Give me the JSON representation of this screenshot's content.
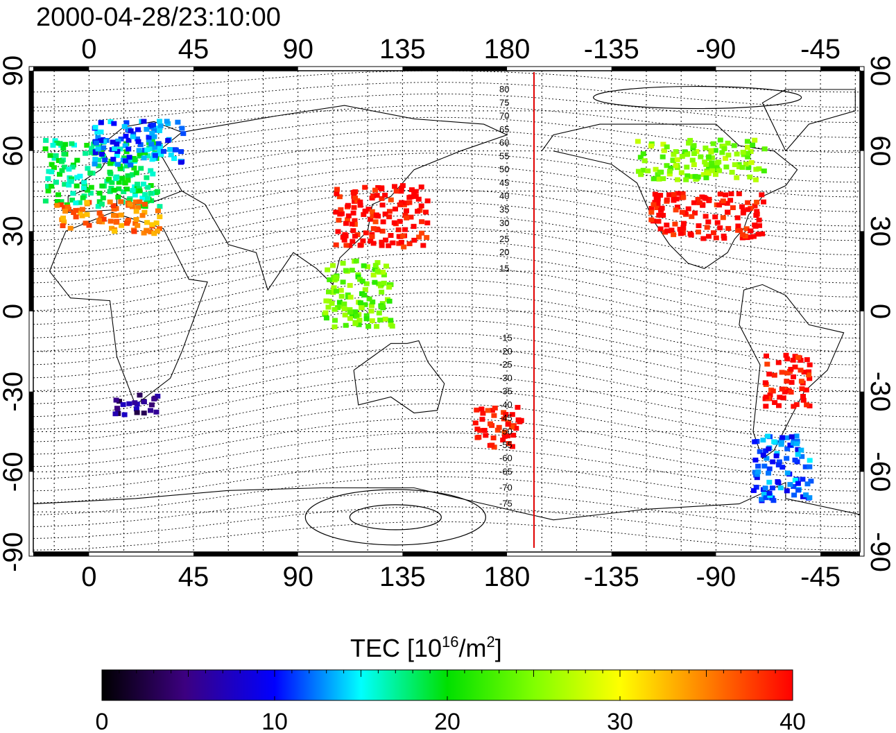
{
  "title": "2000-04-28/23:10:00",
  "colorbar": {
    "title_main": "TEC  [10",
    "title_sup1": "16",
    "title_mid": "/m",
    "title_sup2": "2",
    "title_end": "]",
    "ticks": [
      "0",
      "10",
      "20",
      "30",
      "40"
    ],
    "range": [
      0,
      40
    ]
  },
  "map": {
    "lon_ticks": [
      "0",
      "45",
      "90",
      "135",
      "180",
      "-135",
      "-90",
      "-45"
    ],
    "lat_ticks": [
      "90",
      "60",
      "30",
      "0",
      "-30",
      "-60",
      "-90"
    ],
    "terminator_color": "#e00000",
    "north_labels": [
      "80",
      "75",
      "70",
      "65",
      "60",
      "55",
      "50",
      "45",
      "40",
      "35",
      "30",
      "25",
      "20",
      "15"
    ],
    "south_labels": [
      "-15",
      "-20",
      "-25",
      "-30",
      "-35",
      "-40",
      "-45",
      "-50",
      "-55",
      "-60",
      "-65",
      "-70",
      "-75"
    ]
  },
  "chart_data": {
    "type": "heatmap",
    "title": "2000-04-28/23:10:00",
    "xlabel": "",
    "ylabel": "",
    "xlim": [
      -24,
      332
    ],
    "ylim": [
      -90,
      90
    ],
    "colorbar_label": "TEC [10^16/m^2]",
    "colorbar_range": [
      0,
      40
    ],
    "regions": [
      {
        "lon": [
          -20,
          30
        ],
        "lat": [
          40,
          65
        ],
        "tec": 18
      },
      {
        "lon": [
          -15,
          30
        ],
        "lat": [
          30,
          42
        ],
        "tec": 35
      },
      {
        "lon": [
          0,
          40
        ],
        "lat": [
          55,
          72
        ],
        "tec": 12
      },
      {
        "lon": [
          105,
          145
        ],
        "lat": [
          25,
          48
        ],
        "tec": 40
      },
      {
        "lon": [
          100,
          130
        ],
        "lat": [
          -5,
          20
        ],
        "tec": 24
      },
      {
        "lon": [
          240,
          290
        ],
        "lat": [
          28,
          45
        ],
        "tec": 40
      },
      {
        "lon": [
          235,
          290
        ],
        "lat": [
          50,
          65
        ],
        "tec": 25
      },
      {
        "lon": [
          165,
          185
        ],
        "lat": [
          -50,
          -35
        ],
        "tec": 40
      },
      {
        "lon": [
          290,
          310
        ],
        "lat": [
          -35,
          -15
        ],
        "tec": 40
      },
      {
        "lon": [
          285,
          310
        ],
        "lat": [
          -70,
          -45
        ],
        "tec": 12
      },
      {
        "lon": [
          10,
          30
        ],
        "lat": [
          -38,
          -30
        ],
        "tec": 5
      }
    ]
  }
}
